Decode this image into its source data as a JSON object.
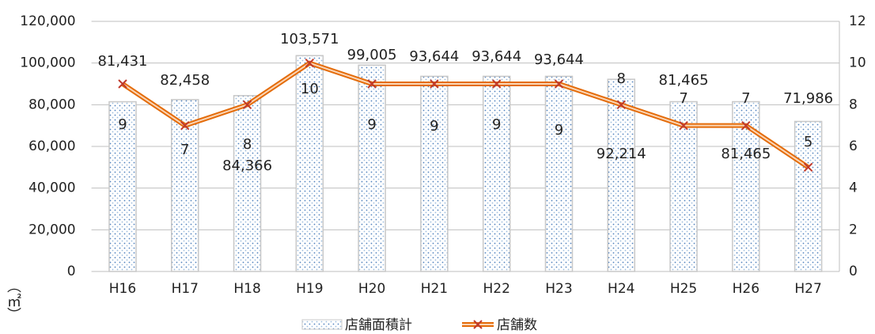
{
  "chart_data": {
    "type": "bar_line",
    "y_label": "（㎡）",
    "categories": [
      "H16",
      "H17",
      "H18",
      "H19",
      "H20",
      "H21",
      "H22",
      "H23",
      "H24",
      "H25",
      "H26",
      "H27"
    ],
    "series": [
      {
        "name": "店舗面積計",
        "type": "bar",
        "color": "#4f81bd",
        "axis": "y",
        "values": [
          81431,
          82458,
          84366,
          103571,
          99005,
          93644,
          93644,
          93644,
          92214,
          81465,
          81465,
          71986
        ],
        "value_labels": [
          "81,431",
          "82,458",
          "84,366",
          "103,571",
          "99,005",
          "93,644",
          "93,644",
          "93,644",
          "92,214",
          "81,465",
          "81,465",
          "71,986"
        ]
      },
      {
        "name": "店舗数",
        "type": "line",
        "color": "#e46c0a",
        "marker_color": "#c0392b",
        "axis": "y2",
        "values": [
          9,
          7,
          8,
          10,
          9,
          9,
          9,
          9,
          8,
          7,
          7,
          5
        ]
      }
    ],
    "ylim": [
      0,
      120000
    ],
    "yticks": [
      0,
      {
        "value": 20000,
        "label": "20,000"
      },
      {
        "value": 40000,
        "label": "40,000"
      },
      {
        "value": 60000,
        "label": "60,000"
      },
      {
        "value": 80000,
        "label": "80,000"
      },
      {
        "value": 100000,
        "label": "100,000"
      },
      {
        "value": 120000,
        "label": "120,000"
      }
    ],
    "y2lim": [
      0,
      12
    ],
    "y2ticks": [
      0,
      2,
      4,
      6,
      8,
      10,
      12
    ],
    "grid": true,
    "legend": "bottom"
  }
}
